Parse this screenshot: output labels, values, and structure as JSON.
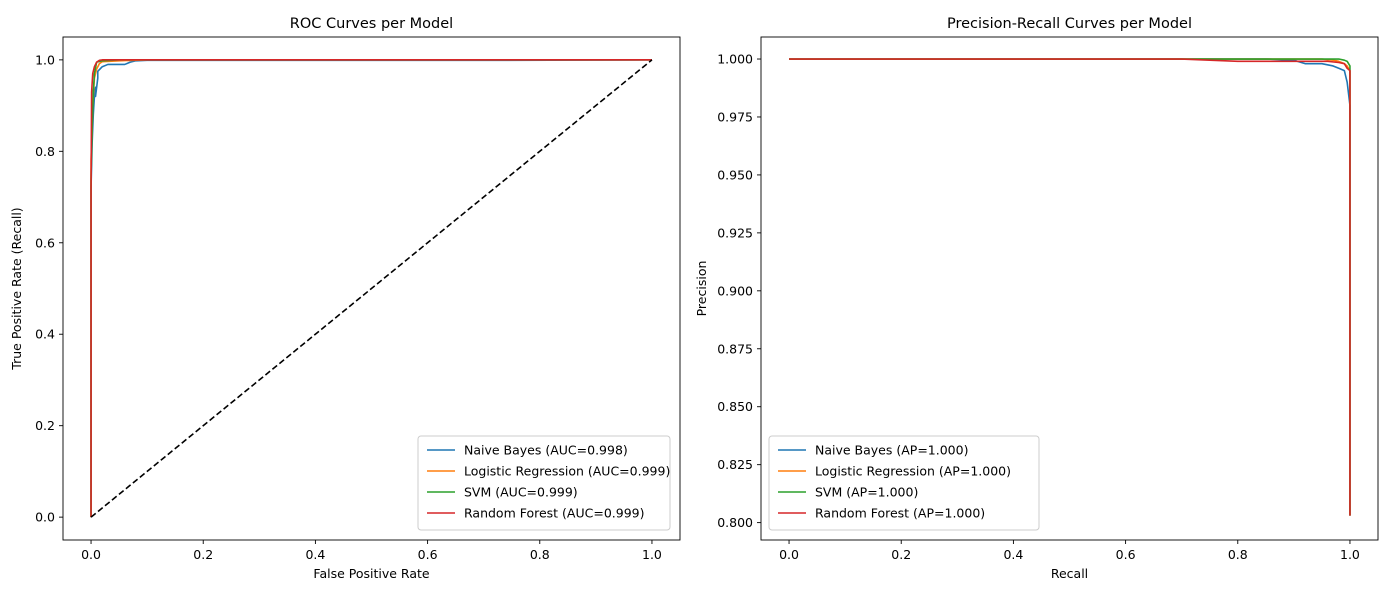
{
  "chart_data": [
    {
      "type": "line",
      "title": "ROC Curves per Model",
      "xlabel": "False Positive Rate",
      "ylabel": "True Positive Rate (Recall)",
      "xlim": [
        -0.05,
        1.05
      ],
      "ylim": [
        -0.05,
        1.05
      ],
      "xticks": [
        0.0,
        0.2,
        0.4,
        0.6,
        0.8,
        1.0
      ],
      "yticks": [
        0.0,
        0.2,
        0.4,
        0.6,
        0.8,
        1.0
      ],
      "xtick_labels": [
        "0.0",
        "0.2",
        "0.4",
        "0.6",
        "0.8",
        "1.0"
      ],
      "ytick_labels": [
        "0.0",
        "0.2",
        "0.4",
        "0.6",
        "0.8",
        "1.0"
      ],
      "grid": false,
      "legend_position": "lower-right",
      "series": [
        {
          "name": "Naive Bayes (AUC=0.998)",
          "color": "#1f77b4",
          "x": [
            0.0,
            0.0,
            0.002,
            0.004,
            0.006,
            0.008,
            0.008,
            0.012,
            0.012,
            0.02,
            0.03,
            0.04,
            0.06,
            0.07,
            0.08,
            0.1,
            0.72,
            1.0
          ],
          "y": [
            0.0,
            0.72,
            0.82,
            0.88,
            0.92,
            0.94,
            0.92,
            0.96,
            0.975,
            0.985,
            0.99,
            0.99,
            0.99,
            0.995,
            0.998,
            0.999,
            0.999,
            1.0
          ]
        },
        {
          "name": "Logistic Regression (AUC=0.999)",
          "color": "#ff7f0e",
          "x": [
            0.0,
            0.0,
            0.003,
            0.006,
            0.01,
            0.015,
            0.02,
            0.05,
            0.1,
            1.0
          ],
          "y": [
            0.0,
            0.78,
            0.9,
            0.96,
            0.98,
            0.992,
            0.996,
            0.998,
            1.0,
            1.0
          ]
        },
        {
          "name": "SVM (AUC=0.999)",
          "color": "#2ca02c",
          "x": [
            0.0,
            0.0,
            0.002,
            0.004,
            0.006,
            0.01,
            0.02,
            0.05,
            1.0
          ],
          "y": [
            0.0,
            0.74,
            0.85,
            0.93,
            0.97,
            0.995,
            0.998,
            1.0,
            1.0
          ]
        },
        {
          "name": "Random Forest (AUC=0.999)",
          "color": "#d62728",
          "x": [
            0.0,
            0.0,
            0.001,
            0.003,
            0.006,
            0.01,
            0.015,
            0.02,
            1.0
          ],
          "y": [
            0.0,
            0.72,
            0.93,
            0.97,
            0.985,
            0.995,
            0.999,
            1.0,
            1.0
          ]
        },
        {
          "name": "",
          "color": "#000000",
          "dashed": true,
          "x": [
            0.0,
            1.0
          ],
          "y": [
            0.0,
            1.0
          ]
        }
      ]
    },
    {
      "type": "line",
      "title": "Precision-Recall Curves per Model",
      "xlabel": "Recall",
      "ylabel": "Precision",
      "xlim": [
        -0.05,
        1.05
      ],
      "ylim": [
        0.7925,
        1.0095
      ],
      "xticks": [
        0.0,
        0.2,
        0.4,
        0.6,
        0.8,
        1.0
      ],
      "yticks": [
        0.8,
        0.825,
        0.85,
        0.875,
        0.9,
        0.925,
        0.95,
        0.975,
        1.0
      ],
      "xtick_labels": [
        "0.0",
        "0.2",
        "0.4",
        "0.6",
        "0.8",
        "1.0"
      ],
      "ytick_labels": [
        "0.800",
        "0.825",
        "0.850",
        "0.875",
        "0.900",
        "0.925",
        "0.950",
        "0.975",
        "1.000"
      ],
      "grid": false,
      "legend_position": "lower-left",
      "series": [
        {
          "name": "Naive Bayes (AP=1.000)",
          "color": "#1f77b4",
          "x": [
            0.0,
            0.7,
            0.85,
            0.9,
            0.92,
            0.94,
            0.95,
            0.96,
            0.97,
            0.98,
            0.99,
            0.995,
            1.0,
            1.0
          ],
          "y": [
            1.0,
            1.0,
            1.0,
            0.9995,
            0.998,
            0.998,
            0.998,
            0.9975,
            0.997,
            0.996,
            0.995,
            0.99,
            0.98,
            0.803
          ]
        },
        {
          "name": "Logistic Regression (AP=1.000)",
          "color": "#ff7f0e",
          "x": [
            0.0,
            0.8,
            0.9,
            0.95,
            0.97,
            0.98,
            0.99,
            0.995,
            1.0,
            1.0
          ],
          "y": [
            1.0,
            1.0,
            1.0,
            1.0,
            0.9995,
            0.999,
            0.998,
            0.997,
            0.995,
            0.803
          ]
        },
        {
          "name": "SVM (AP=1.000)",
          "color": "#2ca02c",
          "x": [
            0.0,
            0.9,
            0.96,
            0.98,
            0.99,
            0.995,
            1.0,
            1.0
          ],
          "y": [
            1.0,
            1.0,
            1.0,
            1.0,
            0.9995,
            0.999,
            0.997,
            0.803
          ]
        },
        {
          "name": "Random Forest (AP=1.000)",
          "color": "#d62728",
          "x": [
            0.0,
            0.7,
            0.75,
            0.8,
            0.85,
            0.9,
            0.93,
            0.96,
            0.98,
            0.99,
            0.995,
            1.0,
            1.0
          ],
          "y": [
            1.0,
            1.0,
            0.9995,
            0.999,
            0.999,
            0.999,
            0.999,
            0.999,
            0.9985,
            0.998,
            0.996,
            0.995,
            0.803
          ]
        }
      ]
    }
  ]
}
